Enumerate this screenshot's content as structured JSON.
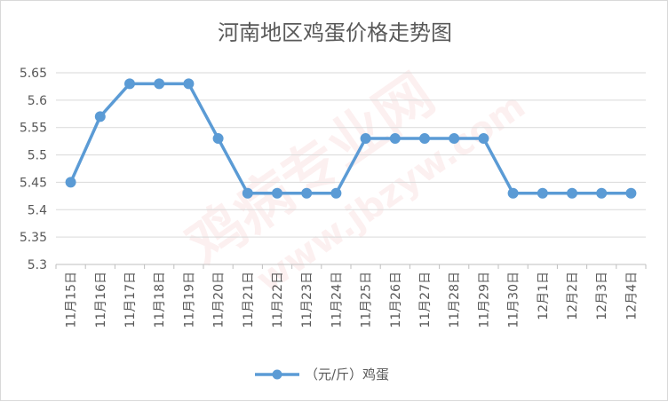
{
  "chart_data": {
    "type": "line",
    "title": "河南地区鸡蛋价格走势图",
    "categories": [
      "11月15日",
      "11月16日",
      "11月17日",
      "11月18日",
      "11月19日",
      "11月20日",
      "11月21日",
      "11月22日",
      "11月23日",
      "11月24日",
      "11月25日",
      "11月26日",
      "11月27日",
      "11月28日",
      "11月29日",
      "11月30日",
      "12月1日",
      "12月2日",
      "12月3日",
      "12月4日"
    ],
    "series": [
      {
        "name": "（元/斤）鸡蛋",
        "values": [
          5.45,
          5.57,
          5.63,
          5.63,
          5.63,
          5.53,
          5.43,
          5.43,
          5.43,
          5.43,
          5.53,
          5.53,
          5.53,
          5.53,
          5.53,
          5.43,
          5.43,
          5.43,
          5.43,
          5.43
        ],
        "color": "#5b9bd5"
      }
    ],
    "ylim": [
      5.3,
      5.65
    ],
    "yticks": [
      "5.3",
      "5.35",
      "5.4",
      "5.45",
      "5.5",
      "5.55",
      "5.6",
      "5.65"
    ],
    "grid": true,
    "legend_position": "bottom"
  },
  "watermark": "鸡病专业网 www.jbzyw.com"
}
